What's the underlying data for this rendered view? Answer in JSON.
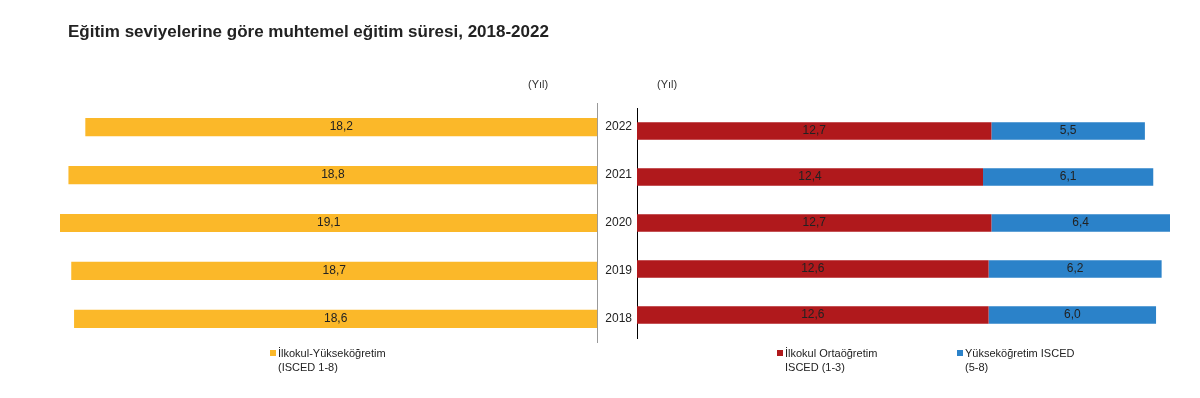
{
  "chart_data": [
    {
      "type": "bar",
      "title": "Eğitim seviyelerine göre muhtemel eğitim süresi, 2018-2022",
      "orientation": "horizontal",
      "categories": [
        "2022",
        "2021",
        "2020",
        "2019",
        "2018"
      ],
      "xlim": [
        19.1,
        0
      ],
      "tick_labels": "y",
      "grid": false,
      "legend": "bottom",
      "annotations": [
        "(Yıl)"
      ],
      "series": [
        {
          "name": "İlkokul-Yükseköğretim (ISCED 1-8)",
          "color": "#fbb829",
          "values": [
            18.2,
            18.8,
            19.1,
            18.7,
            18.6
          ],
          "value_labels": [
            "18,2",
            "18,8",
            "19,1",
            "18,7",
            "18,6"
          ]
        }
      ]
    },
    {
      "type": "bar",
      "orientation": "horizontal",
      "stacked": true,
      "categories": [
        "2022",
        "2021",
        "2020",
        "2019",
        "2018"
      ],
      "xlim": [
        0,
        19.1
      ],
      "tick_labels": false,
      "grid": false,
      "legend": "bottom",
      "annotations": [
        "(Yıl)"
      ],
      "series": [
        {
          "name": "İlkokul Ortaöğretim ISCED (1-3)",
          "color": "#b0191c",
          "values": [
            12.7,
            12.4,
            12.7,
            12.6,
            12.6
          ],
          "value_labels": [
            "12,7",
            "12,4",
            "12,7",
            "12,6",
            "12,6"
          ]
        },
        {
          "name": "Yükseköğretim ISCED (5-8)",
          "color": "#2b82c9",
          "values": [
            5.5,
            6.1,
            6.4,
            6.2,
            6.0
          ],
          "value_labels": [
            "5,5",
            "6,1",
            "6,4",
            "6,2",
            "6,0"
          ]
        }
      ]
    }
  ]
}
